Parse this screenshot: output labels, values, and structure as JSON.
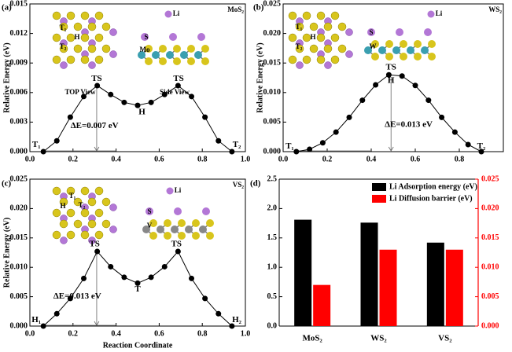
{
  "chart_data": [
    {
      "type": "line",
      "panel_label": "(a)",
      "material": "MoS₂",
      "ylabel": "Relative Energy (eV)",
      "x": [
        0.0625,
        0.125,
        0.1875,
        0.25,
        0.3125,
        0.375,
        0.4375,
        0.5,
        0.5625,
        0.625,
        0.6875,
        0.75,
        0.8125,
        0.875,
        0.9375
      ],
      "values": [
        0,
        0.0011,
        0.0035,
        0.0056,
        0.0067,
        0.0058,
        0.005,
        0.0047,
        0.005,
        0.0058,
        0.0067,
        0.0056,
        0.0035,
        0.0011,
        0
      ],
      "color": "#000000",
      "xlim": [
        0,
        1
      ],
      "ylim": [
        0,
        0.015
      ],
      "xticks": [
        {
          "value": 0,
          "label": "0.0"
        },
        0.2,
        0.4,
        0.6,
        0.8,
        {
          "value": 1,
          "label": "1.0"
        }
      ],
      "yticks": [
        {
          "value": 0,
          "label": "0.000"
        },
        0.003,
        0.006,
        0.009,
        0.012,
        0.015
      ],
      "annotations": [
        "TS",
        "TS",
        "H",
        "T₁",
        "T₂",
        "ΔE=0.007 eV"
      ],
      "inset_labels": [
        "Li",
        "TOP View",
        "Side View",
        "T₁",
        "H",
        "T₂",
        "S",
        "Mo"
      ]
    },
    {
      "type": "line",
      "panel_label": "(b)",
      "material": "WS₂",
      "ylabel": "Relative Energy (eV)",
      "x": [
        0.06,
        0.12,
        0.18,
        0.24,
        0.3,
        0.36,
        0.42,
        0.48,
        0.54,
        0.6,
        0.66,
        0.72,
        0.78,
        0.84,
        0.9
      ],
      "values": [
        0,
        0.0004,
        0.0015,
        0.0033,
        0.0058,
        0.0087,
        0.0113,
        0.013,
        0.0128,
        0.0112,
        0.0087,
        0.0058,
        0.0033,
        0.0012,
        0
      ],
      "color": "#000000",
      "xlim": [
        0,
        1
      ],
      "ylim": [
        0,
        0.025
      ],
      "xticks": [
        {
          "value": 0,
          "label": "0.0"
        },
        0.2,
        0.4,
        0.6,
        0.8
      ],
      "yticks": [
        {
          "value": 0,
          "label": "0.000"
        },
        0.005,
        {
          "value": 0.01,
          "label": "0.010"
        },
        0.015,
        {
          "value": 0.02,
          "label": "0.020"
        },
        0.025
      ],
      "annotations": [
        "TS",
        "H",
        "T₁",
        "T₂",
        "ΔE=0.013 eV"
      ],
      "inset_labels": [
        "Li",
        "T₁",
        "H",
        "T₂",
        "S",
        "W"
      ]
    },
    {
      "type": "line",
      "panel_label": "(c)",
      "material": "VS₂",
      "ylabel": "Relative Energy (eV)",
      "xlabel": "Reaction Coordinate",
      "x": [
        0.0625,
        0.125,
        0.1875,
        0.25,
        0.3125,
        0.375,
        0.4375,
        0.5,
        0.5625,
        0.625,
        0.6875,
        0.75,
        0.8125,
        0.875,
        0.9375
      ],
      "values": [
        0,
        0.0021,
        0.0047,
        0.0081,
        0.0127,
        0.0101,
        0.0083,
        0.0073,
        0.0083,
        0.0101,
        0.0127,
        0.0081,
        0.0047,
        0.0021,
        0
      ],
      "color": "#000000",
      "xlim": [
        0,
        1
      ],
      "ylim": [
        0,
        0.025
      ],
      "xticks": [
        {
          "value": 0,
          "label": "0.0"
        },
        0.2,
        0.4,
        0.6,
        0.8,
        {
          "value": 1,
          "label": "1.0"
        }
      ],
      "yticks": [
        {
          "value": 0,
          "label": "0.000"
        },
        0.005,
        {
          "value": 0.01,
          "label": "0.010"
        },
        0.015,
        {
          "value": 0.02,
          "label": "0.020"
        },
        0.025
      ],
      "annotations": [
        "TS",
        "TS",
        "T",
        "H₁",
        "H₂",
        "ΔE=0.013 eV"
      ],
      "inset_labels": [
        "Li",
        "T₁",
        "H",
        "T₂",
        "S",
        "V"
      ]
    },
    {
      "type": "bar",
      "panel_label": "(d)",
      "categories": [
        "MoS₂",
        "WS₂",
        "VS₂"
      ],
      "series": [
        {
          "name": "Li Adsorption energy (eV)",
          "color": "#000000",
          "values": [
            1.81,
            1.76,
            1.42
          ]
        },
        {
          "name": "Li Diffusion barrier (eV)",
          "color": "#ff0000",
          "values": [
            0.007,
            0.013,
            0.013
          ],
          "axis": "y2"
        }
      ],
      "ylim": [
        0,
        2.5
      ],
      "yticks": [
        {
          "value": 0,
          "label": "0.0"
        },
        0.5,
        {
          "value": 1,
          "label": "1.0"
        },
        1.5,
        {
          "value": 2,
          "label": "2.0"
        },
        2.5
      ],
      "y2lim": [
        0,
        0.025
      ],
      "y2ticks": [
        {
          "value": 0,
          "label": "0.000"
        },
        0.005,
        {
          "value": 0.01,
          "label": "0.010"
        },
        0.015,
        {
          "value": 0.02,
          "label": "0.020"
        },
        0.025
      ],
      "y2color": "#ff0000"
    }
  ]
}
